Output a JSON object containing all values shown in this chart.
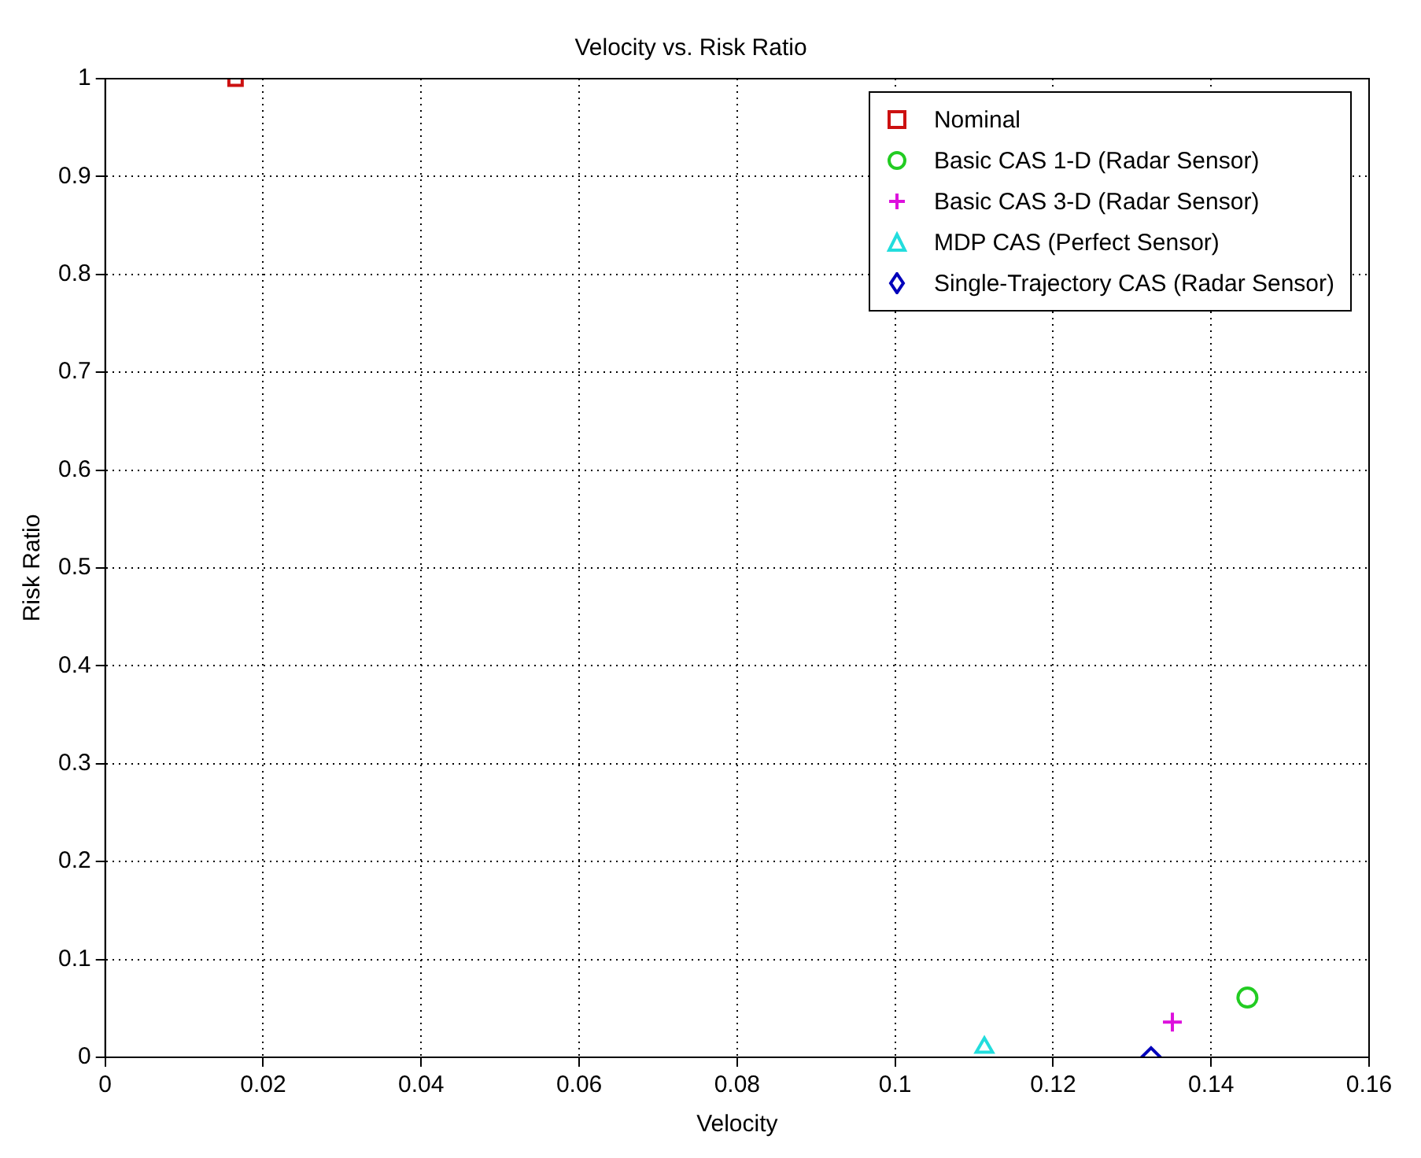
{
  "chart_data": {
    "type": "scatter",
    "title": "Velocity vs. Risk Ratio",
    "xlabel": "Velocity",
    "ylabel": "Risk Ratio",
    "series": [
      {
        "name": "Nominal",
        "color": "#cc1111",
        "marker": "square",
        "x": [
          0.0165
        ],
        "values": [
          1
        ]
      },
      {
        "name": "Basic CAS 1-D (Radar Sensor)",
        "color": "#22cc22",
        "marker": "circle",
        "x": [
          0.1446
        ],
        "values": [
          0.061
        ]
      },
      {
        "name": "Basic CAS 3-D (Radar Sensor)",
        "color": "#dd11dd",
        "marker": "cross",
        "x": [
          0.1351
        ],
        "values": [
          0.036
        ]
      },
      {
        "name": "MDP CAS (Perfect Sensor)",
        "color": "#22dddd",
        "marker": "triangle",
        "x": [
          0.1113
        ],
        "values": [
          0.01
        ]
      },
      {
        "name": "Single-Trajectory CAS (Radar Sensor)",
        "color": "#0000bb",
        "marker": "diamond",
        "x": [
          0.1324
        ],
        "values": [
          0
        ]
      }
    ],
    "xlim": [
      0,
      0.16
    ],
    "xticks": [
      0,
      0.02,
      0.04,
      0.06,
      0.08,
      0.1,
      0.12,
      0.14,
      0.16
    ],
    "ylim": [
      0,
      1
    ],
    "yticks": [
      0,
      0.1,
      0.2,
      0.3,
      0.4,
      0.5,
      0.6,
      0.7,
      0.8,
      0.9,
      1
    ],
    "grid": true,
    "legend": "top right",
    "line_style": "dotted"
  }
}
